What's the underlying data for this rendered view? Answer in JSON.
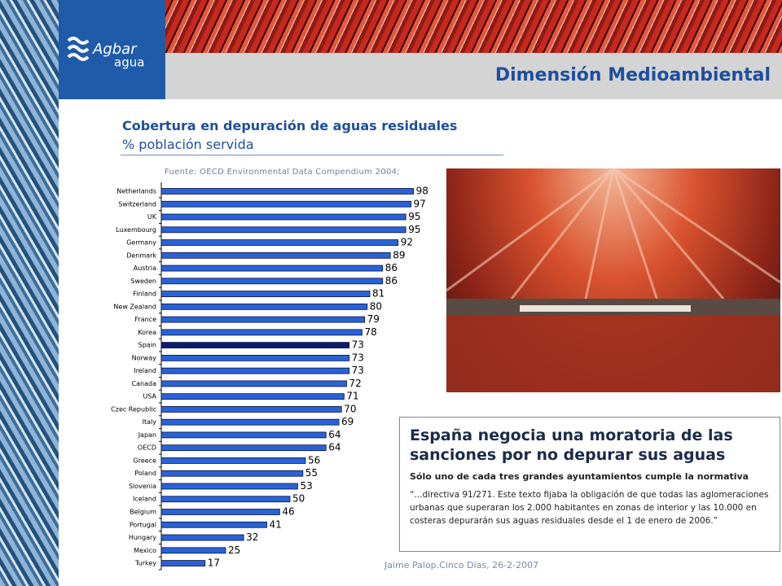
{
  "header": {
    "logo": "Agbar",
    "logo_sub": "agua",
    "title": "Dimensión Medioambiental"
  },
  "chart_data": {
    "type": "bar",
    "orientation": "horizontal",
    "title": "Cobertura en depuración de aguas residuales",
    "subtitle": "% población servida",
    "source": "Fuente: OECD Environmental Data Compendium 2004;",
    "categories": [
      "Netherlands",
      "Switzerland",
      "UK",
      "Luxembourg",
      "Germany",
      "Denmark",
      "Austria",
      "Sweden",
      "Finland",
      "New Zealand",
      "France",
      "Korea",
      "Spain",
      "Norway",
      "Ireland",
      "Canada",
      "USA",
      "Czec Republic",
      "Italy",
      "Japan",
      "OECD",
      "Greece",
      "Poland",
      "Slovenia",
      "Iceland",
      "Belgium",
      "Portugal",
      "Hungary",
      "Mexico",
      "Turkey"
    ],
    "values": [
      98,
      97,
      95,
      95,
      92,
      89,
      86,
      86,
      81,
      80,
      79,
      78,
      73,
      73,
      73,
      72,
      71,
      70,
      69,
      64,
      64,
      56,
      55,
      53,
      50,
      46,
      41,
      32,
      25,
      17
    ],
    "colors": [
      "#2a62d6",
      "#2a62d6",
      "#2a62d6",
      "#2a62d6",
      "#2a62d6",
      "#2a62d6",
      "#2a62d6",
      "#2a62d6",
      "#2a62d6",
      "#2a62d6",
      "#2a62d6",
      "#2a62d6",
      "#0b1a6b",
      "#2a62d6",
      "#2a62d6",
      "#2a62d6",
      "#2a62d6",
      "#2a62d6",
      "#2a62d6",
      "#2a62d6",
      "#2a62d6",
      "#2a62d6",
      "#2a62d6",
      "#2a62d6",
      "#2a62d6",
      "#2a62d6",
      "#2a62d6",
      "#2a62d6",
      "#2a62d6",
      "#2a62d6"
    ],
    "xlim": [
      0,
      100
    ]
  },
  "news": {
    "headline": "España negocia una moratoria de las sanciones por no depurar sus aguas",
    "subhead": "Sólo uno de cada tres grandes ayuntamientos cumple la normativa",
    "quote": "“...directiva 91/271. Este texto fijaba la obligación de que todas las aglomeraciones urbanas que superaran los 2.000 habitantes en zonas de interior y las 10.000 en costeras depurarán sus aguas residuales desde el 1 de enero de 2006.”"
  },
  "footer": "Jaime Palop.Cinco Días, 26-2-2007"
}
